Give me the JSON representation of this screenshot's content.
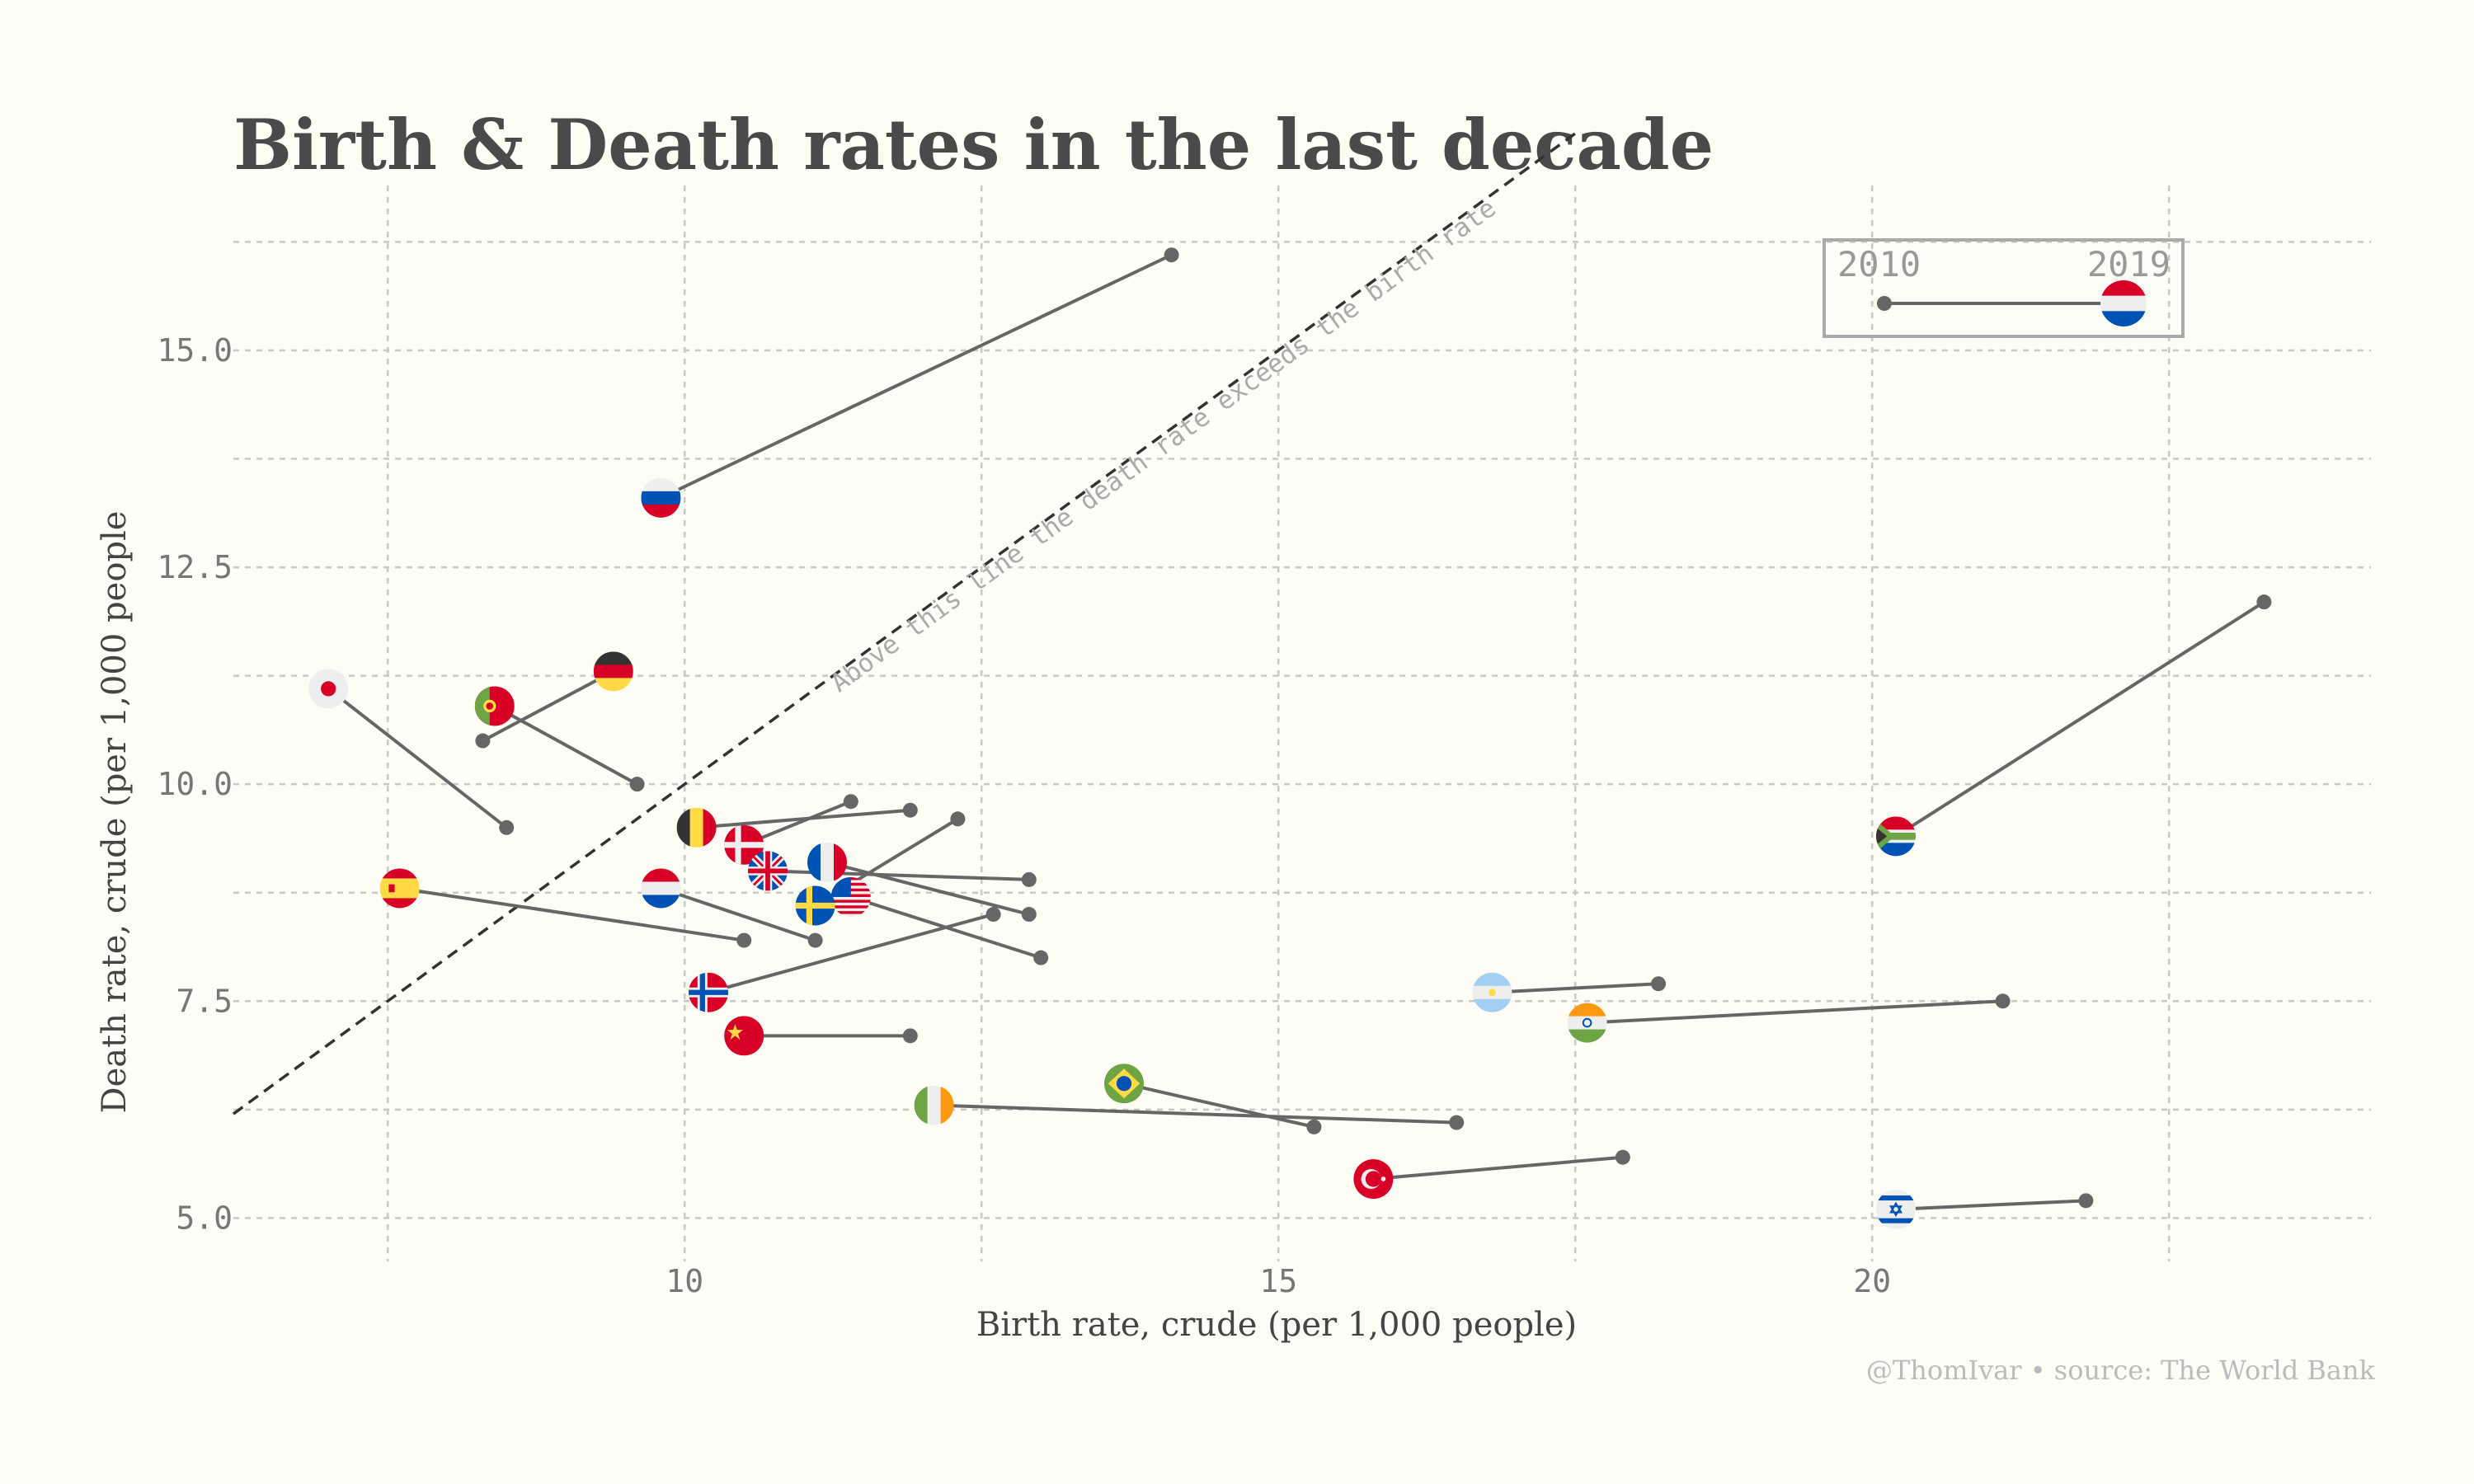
{
  "title": "Birth & Death rates in the last decade",
  "source": "@ThomIvar • source: The World Bank",
  "diagonal_label": "Above this line the death rate exceeds the birth rate",
  "legend": {
    "start_label": "2010",
    "end_label": "2019",
    "flag": "netherlands"
  },
  "chart_data": {
    "type": "scatter",
    "title": "Birth & Death rates in the last decade",
    "xlabel": "Birth rate, crude (per 1,000 people)",
    "ylabel": "Death rate, crude (per 1,000 people",
    "xlim": [
      6.2,
      24.2
    ],
    "ylim": [
      4.5,
      16.9
    ],
    "x_ticks": [
      10,
      15,
      20
    ],
    "x_tick_labels": [
      "10",
      "15",
      "20"
    ],
    "y_ticks": [
      5.0,
      7.5,
      10.0,
      12.5,
      15.0
    ],
    "y_tick_labels": [
      "5.0",
      "7.5",
      "10.0",
      "12.5",
      "15.0"
    ],
    "grid": true,
    "reference_line": "y = x",
    "legend": "top-right",
    "series_years": [
      "2010",
      "2019"
    ],
    "countries": [
      {
        "flag": "russia",
        "birth_2010": 14.1,
        "death_2010": 16.1,
        "birth_2019": 9.8,
        "death_2019": 13.3
      },
      {
        "flag": "japan",
        "birth_2010": 8.5,
        "death_2010": 9.5,
        "birth_2019": 7.0,
        "death_2019": 11.1
      },
      {
        "flag": "germany",
        "birth_2010": 8.3,
        "death_2010": 10.5,
        "birth_2019": 9.4,
        "death_2019": 11.3
      },
      {
        "flag": "portugal",
        "birth_2010": 9.6,
        "death_2010": 10.0,
        "birth_2019": 8.4,
        "death_2019": 10.9
      },
      {
        "flag": "spain",
        "birth_2010": 10.5,
        "death_2010": 8.2,
        "birth_2019": 7.6,
        "death_2019": 8.8
      },
      {
        "flag": "netherlands",
        "birth_2010": 11.1,
        "death_2010": 8.2,
        "birth_2019": 9.8,
        "death_2019": 8.8
      },
      {
        "flag": "belgium",
        "birth_2010": 11.9,
        "death_2010": 9.7,
        "birth_2019": 10.1,
        "death_2019": 9.5
      },
      {
        "flag": "denmark",
        "birth_2010": 11.4,
        "death_2010": 9.8,
        "birth_2019": 10.5,
        "death_2019": 9.3
      },
      {
        "flag": "uk",
        "birth_2010": 12.9,
        "death_2010": 8.9,
        "birth_2019": 10.7,
        "death_2019": 9.0
      },
      {
        "flag": "france",
        "birth_2010": 12.9,
        "death_2010": 8.5,
        "birth_2019": 11.2,
        "death_2019": 9.1
      },
      {
        "flag": "usa",
        "birth_2010": 13.0,
        "death_2010": 8.0,
        "birth_2019": 11.4,
        "death_2019": 8.7
      },
      {
        "flag": "sweden",
        "birth_2010": 12.3,
        "death_2010": 9.6,
        "birth_2019": 11.1,
        "death_2019": 8.6
      },
      {
        "flag": "norway",
        "birth_2010": 12.6,
        "death_2010": 8.5,
        "birth_2019": 10.2,
        "death_2019": 7.6
      },
      {
        "flag": "china",
        "birth_2010": 11.9,
        "death_2010": 7.1,
        "birth_2019": 10.5,
        "death_2019": 7.1
      },
      {
        "flag": "ireland",
        "birth_2010": 16.5,
        "death_2010": 6.1,
        "birth_2019": 12.1,
        "death_2019": 6.3
      },
      {
        "flag": "brazil",
        "birth_2010": 15.3,
        "death_2010": 6.05,
        "birth_2019": 13.7,
        "death_2019": 6.55
      },
      {
        "flag": "turkey",
        "birth_2010": 17.9,
        "death_2010": 5.7,
        "birth_2019": 15.8,
        "death_2019": 5.45
      },
      {
        "flag": "argentina",
        "birth_2010": 18.2,
        "death_2010": 7.7,
        "birth_2019": 16.8,
        "death_2019": 7.6
      },
      {
        "flag": "india",
        "birth_2010": 21.1,
        "death_2010": 7.5,
        "birth_2019": 17.6,
        "death_2019": 7.25
      },
      {
        "flag": "south-africa",
        "birth_2010": 23.3,
        "death_2010": 12.1,
        "birth_2019": 20.2,
        "death_2019": 9.4
      },
      {
        "flag": "israel",
        "birth_2010": 21.8,
        "death_2010": 5.2,
        "birth_2019": 20.2,
        "death_2019": 5.1
      }
    ]
  }
}
